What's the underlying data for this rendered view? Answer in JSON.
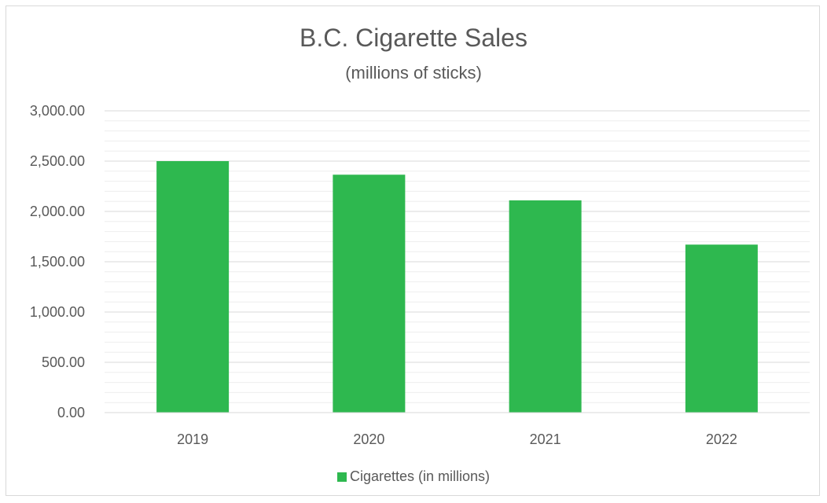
{
  "chart_data": {
    "type": "bar",
    "title": "B.C. Cigarette Sales",
    "subtitle": "(millions of sticks)",
    "categories": [
      "2019",
      "2020",
      "2021",
      "2022"
    ],
    "series": [
      {
        "name": "Cigarettes (in millions)",
        "values": [
          2500,
          2365,
          2110,
          1670
        ],
        "color": "#2eb84f"
      }
    ],
    "ylim": [
      0,
      3000
    ],
    "yticks": [
      0,
      500,
      1000,
      1500,
      2000,
      2500,
      3000
    ],
    "ytick_labels": [
      "0.00",
      "500.00",
      "1,000.00",
      "1,500.00",
      "2,000.00",
      "2,500.00",
      "3,000.00"
    ],
    "minor_grid_step": 100,
    "grid": true,
    "legend": "bottom"
  }
}
